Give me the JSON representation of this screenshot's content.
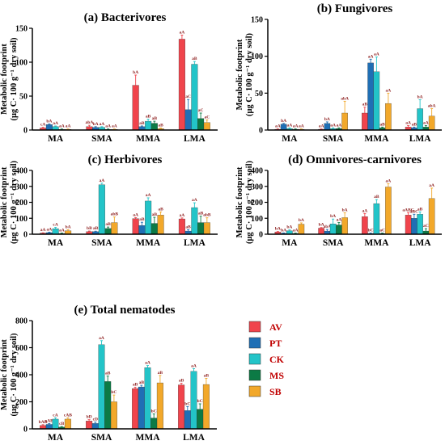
{
  "chart_data": [
    {
      "type": "bar",
      "title": "(a) Bacterivores",
      "ylabel_lines": [
        "Metabolic footprint",
        "(μg C· 100 g⁻¹ dry soil)"
      ],
      "categories": [
        "MA",
        "SMA",
        "MMA",
        "LMA"
      ],
      "ylim": [
        0,
        150
      ],
      "yticks": [
        0,
        50,
        100,
        150
      ],
      "series": [
        {
          "name": "AV",
          "values": [
            3,
            5,
            66,
            134
          ],
          "err": [
            1,
            2,
            15,
            6
          ]
        },
        {
          "name": "PT",
          "values": [
            8,
            4,
            5,
            30
          ],
          "err": [
            1,
            1,
            1,
            15
          ]
        },
        {
          "name": "CK",
          "values": [
            5,
            4,
            13,
            97
          ],
          "err": [
            1,
            1,
            3,
            4
          ]
        },
        {
          "name": "MS",
          "values": [
            1,
            1,
            10,
            17
          ],
          "err": [
            0.5,
            0.5,
            3,
            8
          ]
        },
        {
          "name": "SB",
          "values": [
            1,
            1,
            2,
            11
          ],
          "err": [
            0.5,
            0.5,
            1,
            4
          ]
        }
      ],
      "labels": [
        [
          "cA",
          "abA",
          "bA",
          "aA"
        ],
        [
          "bA",
          "bA",
          "aB",
          "aC"
        ],
        [
          "aA",
          "aA",
          "aB",
          "aB"
        ],
        [
          "aA",
          "aA",
          "aB",
          "aC"
        ],
        [
          "aA",
          "aA",
          "aB",
          "aC"
        ]
      ]
    },
    {
      "type": "bar",
      "title": "(b) Fungivores",
      "ylabel_lines": [
        "Metabolic footprint",
        "(μg C· 100 g⁻¹ dry soil)"
      ],
      "categories": [
        "MA",
        "SMA",
        "MMA",
        "LMA"
      ],
      "ylim": [
        0,
        150
      ],
      "yticks": [
        0,
        50,
        100,
        150
      ],
      "series": [
        {
          "name": "AV",
          "values": [
            1,
            1,
            23,
            4
          ],
          "err": [
            0.5,
            0.5,
            8,
            2
          ]
        },
        {
          "name": "PT",
          "values": [
            8,
            9,
            91,
            3
          ],
          "err": [
            1,
            2,
            5,
            1
          ]
        },
        {
          "name": "CK",
          "values": [
            2,
            2,
            79,
            29
          ],
          "err": [
            1,
            1,
            20,
            12
          ]
        },
        {
          "name": "MS",
          "values": [
            1,
            2,
            3,
            4
          ],
          "err": [
            0.5,
            1,
            1,
            2
          ]
        },
        {
          "name": "SB",
          "values": [
            1,
            23,
            36,
            19
          ],
          "err": [
            0.5,
            16,
            14,
            10
          ]
        }
      ],
      "labels": [
        [
          "aA",
          "aA",
          "aB",
          "aA"
        ],
        [
          "bA",
          "bA",
          "aA",
          "aB"
        ],
        [
          "aA",
          "aA",
          "aA",
          "bA"
        ],
        [
          "aA",
          "aA",
          "aB",
          "aA"
        ],
        [
          "aA",
          "abA",
          "aA",
          "abA"
        ]
      ]
    },
    {
      "type": "bar",
      "title": "(c) Herbivores",
      "ylabel_lines": [
        "Metabolic footprint",
        "(μg C· 100 g⁻¹ dry soil)"
      ],
      "categories": [
        "MA",
        "SMA",
        "MMA",
        "LMA"
      ],
      "ylim": [
        0,
        400
      ],
      "yticks": [
        0,
        100,
        200,
        300,
        400
      ],
      "series": [
        {
          "name": "AV",
          "values": [
            7,
            16,
            98,
            96
          ],
          "err": [
            2,
            4,
            6,
            6
          ]
        },
        {
          "name": "PT",
          "values": [
            10,
            16,
            55,
            20
          ],
          "err": [
            3,
            3,
            20,
            8
          ]
        },
        {
          "name": "CK",
          "values": [
            35,
            310,
            208,
            167
          ],
          "err": [
            8,
            10,
            20,
            30
          ]
        },
        {
          "name": "MS",
          "values": [
            5,
            36,
            68,
            73
          ],
          "err": [
            2,
            9,
            38,
            40
          ]
        },
        {
          "name": "SB",
          "values": [
            22,
            73,
            120,
            73
          ],
          "err": [
            6,
            35,
            20,
            30
          ]
        }
      ],
      "labels": [
        [
          "aA",
          "bB",
          "aA",
          "aA"
        ],
        [
          "aA",
          "aB",
          "aB",
          "aB"
        ],
        [
          "cA",
          "aA",
          "aA",
          "aA"
        ],
        [
          "aA",
          "aB",
          "aB",
          "aB"
        ],
        [
          "bA",
          "abB",
          "aB",
          "abB"
        ]
      ]
    },
    {
      "type": "bar",
      "title": "(d) Omnivores-carnivores",
      "ylabel_lines": [
        "Metabolic footprint",
        "(μg C· 100 g⁻¹ dry soil)"
      ],
      "categories": [
        "MA",
        "SMA",
        "MMA",
        "LMA"
      ],
      "ylim": [
        0,
        400
      ],
      "yticks": [
        0,
        100,
        200,
        300,
        400
      ],
      "series": [
        {
          "name": "AV",
          "values": [
            14,
            38,
            110,
            120
          ],
          "err": [
            3,
            4,
            20,
            15
          ]
        },
        {
          "name": "PT",
          "values": [
            6,
            20,
            5,
            100
          ],
          "err": [
            2,
            10,
            2,
            25
          ]
        },
        {
          "name": "CK",
          "values": [
            22,
            65,
            192,
            125
          ],
          "err": [
            5,
            30,
            25,
            15
          ]
        },
        {
          "name": "MS",
          "values": [
            5,
            58,
            5,
            20
          ],
          "err": [
            2,
            15,
            2,
            15
          ]
        },
        {
          "name": "SB",
          "values": [
            63,
            104,
            296,
            224
          ],
          "err": [
            8,
            30,
            20,
            65
          ]
        }
      ],
      "labels": [
        [
          "bA",
          "bA",
          "aA",
          "aABC"
        ],
        [
          "bA",
          "abA",
          "bC",
          "aBC"
        ],
        [
          "bA",
          "bA",
          "aB",
          "aB"
        ],
        [
          "aA",
          "aA",
          "aC",
          "aC"
        ],
        [
          "bA",
          "bA",
          "aA",
          "aA"
        ]
      ]
    },
    {
      "type": "bar",
      "title": "(e) Total nematodes",
      "ylabel_lines": [
        "Metabolic footprint",
        "(μg C· 100 g⁻¹ dry soil)"
      ],
      "categories": [
        "MA",
        "SMA",
        "MMA",
        "LMA"
      ],
      "ylim": [
        0,
        800
      ],
      "yticks": [
        0,
        200,
        400,
        600,
        800
      ],
      "series": [
        {
          "name": "AV",
          "values": [
            25,
            58,
            298,
            325
          ],
          "err": [
            6,
            10,
            10,
            12
          ]
        },
        {
          "name": "PT",
          "values": [
            33,
            40,
            310,
            135
          ],
          "err": [
            6,
            10,
            12,
            30
          ]
        },
        {
          "name": "CK",
          "values": [
            72,
            622,
            453,
            425
          ],
          "err": [
            10,
            30,
            15,
            20
          ]
        },
        {
          "name": "MS",
          "values": [
            13,
            350,
            80,
            145
          ],
          "err": [
            4,
            40,
            30,
            40
          ]
        },
        {
          "name": "SB",
          "values": [
            72,
            200,
            340,
            328
          ],
          "err": [
            10,
            50,
            55,
            45
          ]
        }
      ],
      "labels": [
        [
          "bAB",
          "bD",
          "aB",
          "aB"
        ],
        [
          "cAB",
          "cD",
          "aB",
          "bC"
        ],
        [
          "cA",
          "aA",
          "aA",
          "aA"
        ],
        [
          "cB",
          "aB",
          "bC",
          "bC"
        ],
        [
          "cAB",
          "bC",
          "aB",
          "aB"
        ]
      ]
    }
  ],
  "legend": [
    {
      "name": "AV",
      "color": "#F0444C"
    },
    {
      "name": "PT",
      "color": "#1F6FB5"
    },
    {
      "name": "CK",
      "color": "#23C4C8"
    },
    {
      "name": "MS",
      "color": "#0C7A45"
    },
    {
      "name": "SB",
      "color": "#F2A82A"
    }
  ]
}
